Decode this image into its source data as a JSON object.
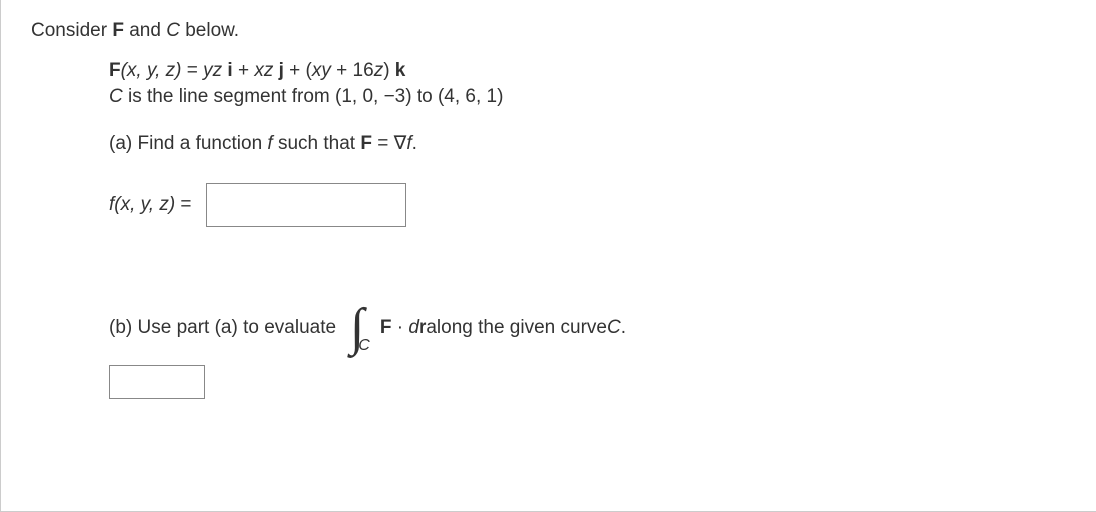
{
  "intro": {
    "prefix": "Consider ",
    "F": "F",
    "mid": " and ",
    "C": "C",
    "suffix": " below."
  },
  "equation": {
    "lhs_F": "F",
    "lhs_vars": "(x, y, z)",
    "eq": " = ",
    "t1": "yz ",
    "i": "i",
    "plus1": " + ",
    "t2": "xz ",
    "j": "j",
    "plus2": " + (",
    "t3a": "xy",
    "t3p": " + 16",
    "t3z": "z",
    "t3c": ") ",
    "k": "k"
  },
  "cdesc": {
    "C": "C",
    "text": " is the line segment from (1, 0, −3) to (4, 6, 1)"
  },
  "part_a": {
    "label": "(a) Find a function ",
    "f": "f",
    "mid": " such that ",
    "F": "F",
    "eq": " = ∇",
    "f2": "f",
    "dot": "."
  },
  "fxyz": {
    "f": "f",
    "vars": "(x, y, z)",
    "eq": " ="
  },
  "part_b": {
    "label": "(b) Use part (a) to evaluate",
    "int_sub": "C",
    "F": "F",
    "dot": " · ",
    "dr_d": "d",
    "dr_r": "r",
    "tail": "  along the given curve ",
    "C": "C",
    "period": "."
  },
  "input_a_value": "",
  "input_b_value": ""
}
